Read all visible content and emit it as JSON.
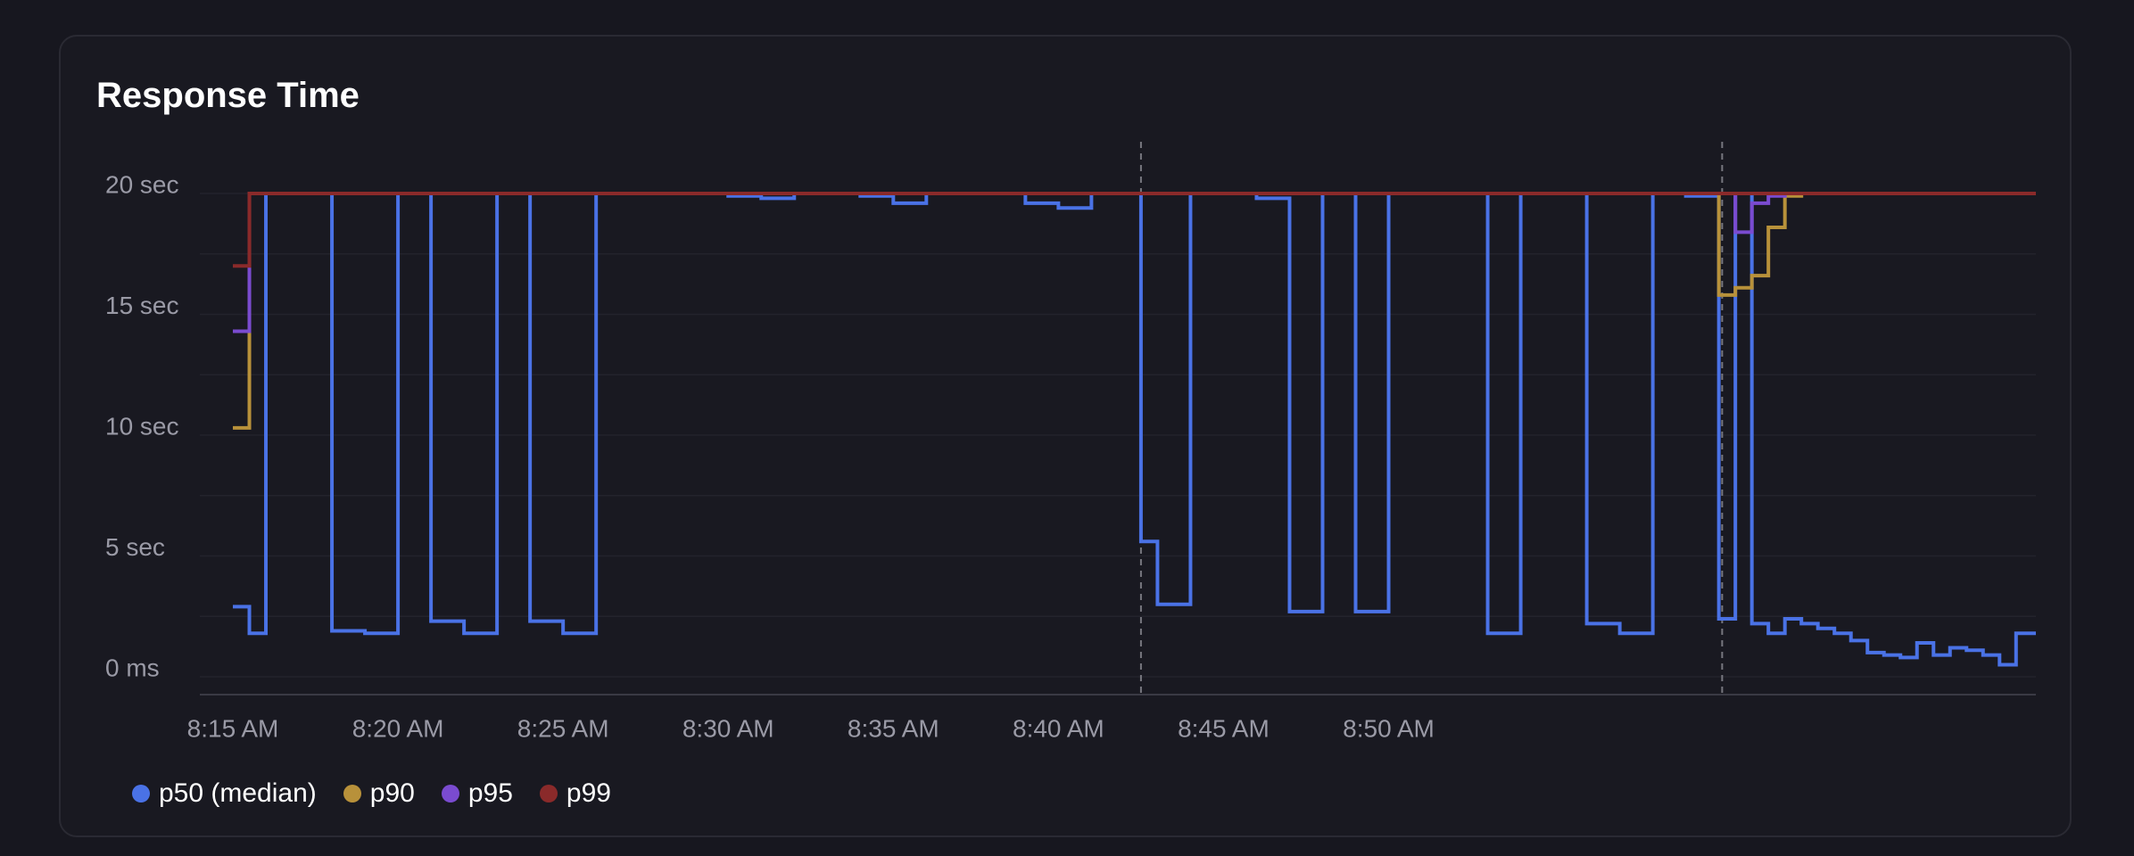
{
  "chart_data": {
    "type": "line",
    "step": true,
    "title": "Response Time",
    "x_ticks": [
      "8:15 AM",
      "8:20 AM",
      "8:25 AM",
      "8:30 AM",
      "8:35 AM",
      "8:40 AM",
      "8:45 AM",
      "8:50 AM"
    ],
    "y_ticks": [
      "20 sec",
      "15 sec",
      "10 sec",
      "5 sec",
      "0 ms"
    ],
    "y_tick_values": [
      20,
      15,
      10,
      5,
      0
    ],
    "ylim": [
      0,
      20
    ],
    "x_range_minutes_after_8_15": [
      -1,
      54.6
    ],
    "grid": true,
    "legend_position": "bottom-left",
    "markers_minutes": [
      27.5,
      45.1
    ],
    "series": [
      {
        "name": "p50 (median)",
        "color": "#4a72e6",
        "x": [
          0,
          0.5,
          1,
          2,
          3,
          4,
          5,
          5.5,
          6,
          7,
          8,
          9,
          10,
          11,
          12,
          13,
          14,
          15,
          16,
          17,
          18,
          19,
          20,
          21,
          22,
          23,
          24,
          25,
          26,
          27,
          27.5,
          28,
          29,
          30,
          31,
          32,
          33,
          34,
          35,
          36,
          37,
          38,
          39,
          40,
          41,
          42,
          43,
          44,
          45,
          45.5,
          46,
          46.5,
          47,
          47.5,
          48,
          48.5,
          49,
          49.5,
          50,
          50.5,
          51,
          51.5,
          52,
          52.5,
          53,
          53.5,
          54
        ],
        "y": [
          2.9,
          1.8,
          20,
          20,
          1.9,
          1.8,
          20,
          20,
          2.3,
          1.8,
          20,
          2.3,
          1.8,
          20,
          20,
          20,
          20,
          19.9,
          19.8,
          20,
          20,
          19.9,
          19.6,
          20,
          20,
          20,
          19.6,
          19.4,
          20,
          20,
          5.6,
          3.0,
          20,
          20,
          19.8,
          2.7,
          20,
          2.7,
          20,
          20,
          20,
          1.8,
          20,
          20,
          2.2,
          1.8,
          20,
          19.9,
          2.4,
          20,
          2.2,
          1.8,
          2.4,
          2.2,
          2.0,
          1.8,
          1.5,
          1.0,
          0.9,
          0.8,
          1.4,
          0.9,
          1.2,
          1.1,
          0.9,
          0.5,
          1.8
        ]
      },
      {
        "name": "p90",
        "color": "#b8913a",
        "x": [
          0,
          0.5,
          1,
          44.5,
          45,
          45.5,
          46,
          46.5,
          47,
          47.5,
          48,
          54.6
        ],
        "y": [
          10.3,
          20,
          20,
          20,
          15.8,
          16.1,
          16.6,
          18.6,
          19.9,
          20,
          20,
          20
        ]
      },
      {
        "name": "p95",
        "color": "#7a4bd0",
        "x": [
          0,
          0.5,
          1,
          45,
          45.5,
          46,
          46.5,
          47,
          47.5,
          54.6
        ],
        "y": [
          14.3,
          20,
          20,
          20,
          18.4,
          19.6,
          19.9,
          20,
          20,
          20
        ]
      },
      {
        "name": "p99",
        "color": "#8a2a2a",
        "x": [
          0,
          0.5,
          1,
          54.6
        ],
        "y": [
          17.0,
          20,
          20,
          20
        ]
      }
    ]
  }
}
